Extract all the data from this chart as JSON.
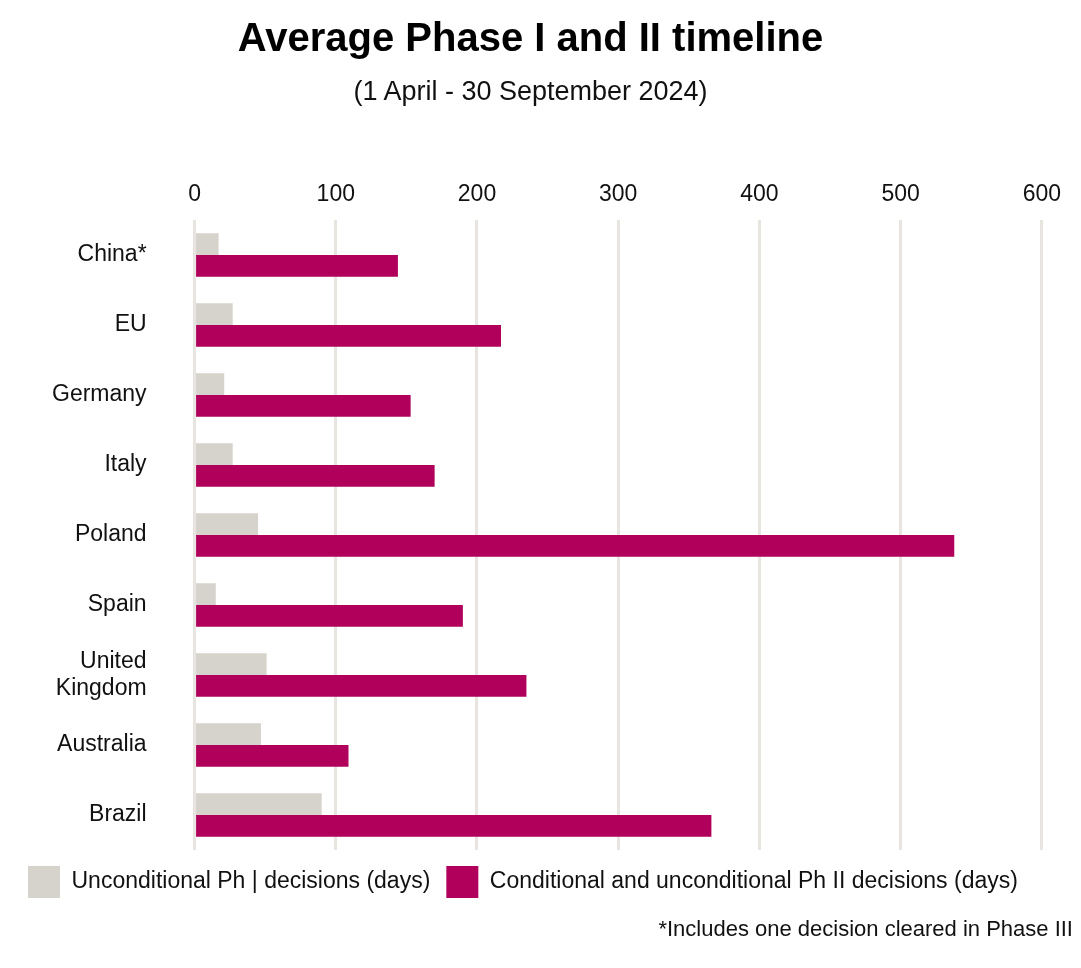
{
  "chart_data": {
    "type": "bar",
    "orientation": "horizontal",
    "title": "Average Phase I and II timeline",
    "subtitle": "(1 April - 30 September 2024)",
    "categories": [
      "China*",
      "EU",
      "Germany",
      "Italy",
      "Poland",
      "Spain",
      "United Kingdom",
      "Australia",
      "Brazil"
    ],
    "series": [
      {
        "name": "Unconditional Ph | decisions (days)",
        "color": "#d6d2cc",
        "values": [
          17,
          27,
          21,
          27,
          45,
          15,
          51,
          47,
          90
        ]
      },
      {
        "name": "Conditional and unconditional Ph II decisions (days)",
        "color": "#b0005c",
        "values": [
          144,
          217,
          153,
          170,
          538,
          190,
          235,
          109,
          366
        ]
      }
    ],
    "xlim": [
      0,
      600
    ],
    "xticks": [
      0,
      100,
      200,
      300,
      400,
      500,
      600
    ],
    "grid": "x",
    "legend": "bottom",
    "annotations": [
      "*Includes one decision cleared in Phase III"
    ]
  }
}
